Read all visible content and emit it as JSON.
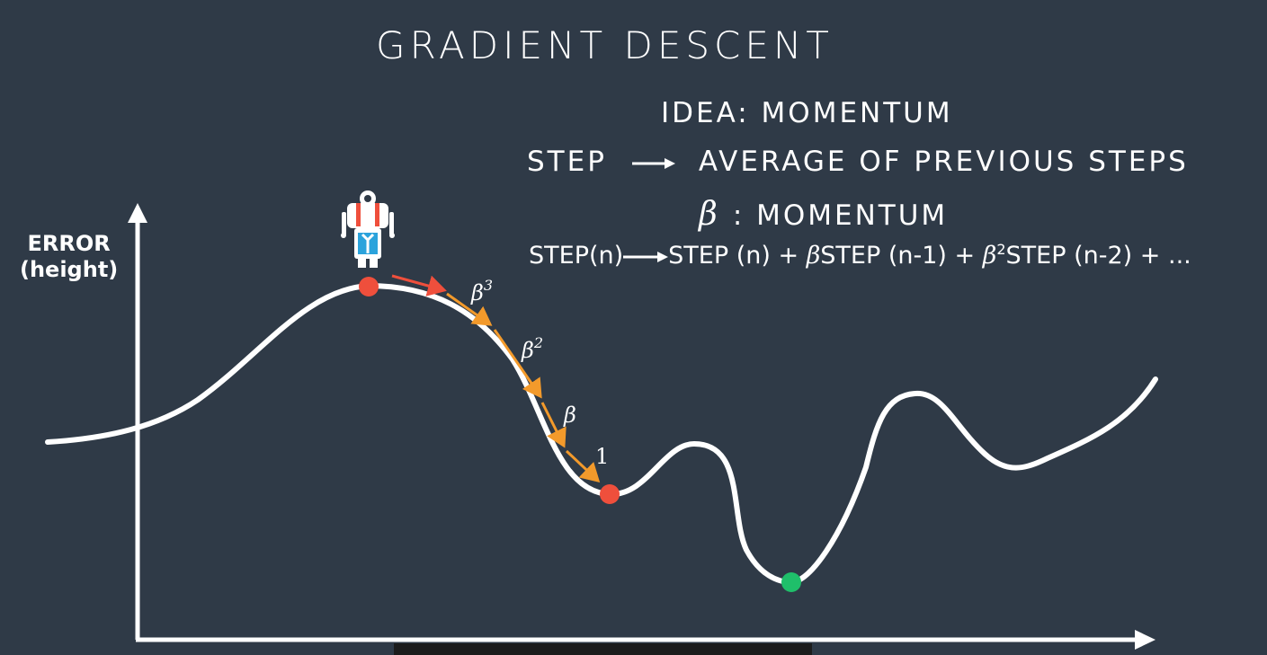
{
  "title": "GRADIENT DESCENT",
  "idea": "IDEA: MOMENTUM",
  "step_rule": {
    "left": "STEP",
    "right": "AVERAGE OF PREVIOUS STEPS"
  },
  "beta_def": {
    "symbol": "β",
    "text": ": MOMENTUM"
  },
  "formula": {
    "part1": "STEP(n)",
    "part2": "STEP (n) + ",
    "beta": "β",
    "part3": "STEP (n-1) + ",
    "beta2": "β",
    "sup2": "2",
    "part4": "STEP (n-2) + ..."
  },
  "axis": {
    "ylabel_line1": "ERROR",
    "ylabel_line2": "(height)"
  },
  "step_labels": {
    "b3": "β",
    "b3_exp": "3",
    "b2": "β",
    "b2_exp": "2",
    "b1": "β",
    "one": "1"
  },
  "colors": {
    "background": "#2f3a47",
    "curve": "#ffffff",
    "current_point": "#ef4f3c",
    "goal_point": "#1fbf6a",
    "arrow_first": "#ef4f3c",
    "arrow_steps": "#f39a2b"
  },
  "icons": [
    "robot-icon"
  ]
}
